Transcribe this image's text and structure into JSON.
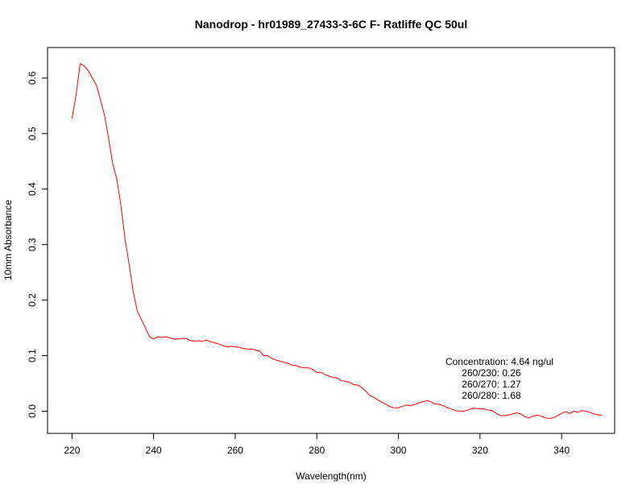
{
  "chart_data": {
    "type": "line",
    "title": "Nanodrop - hr01989_27433-3-6C  F- Ratliffe QC 50ul",
    "xlabel": "Wavelength(nm)",
    "ylabel": "10mm Absorbance",
    "xlim": [
      214,
      353
    ],
    "ylim": [
      -0.04,
      0.655
    ],
    "x_ticks": [
      220,
      240,
      260,
      280,
      300,
      320,
      340
    ],
    "y_ticks": [
      0.0,
      0.1,
      0.2,
      0.3,
      0.4,
      0.5,
      0.6
    ],
    "x_tick_labels": [
      "220",
      "240",
      "260",
      "280",
      "300",
      "320",
      "340"
    ],
    "y_tick_labels": [
      "0.0",
      "0.1",
      "0.2",
      "0.3",
      "0.4",
      "0.5",
      "0.6"
    ],
    "grid": false,
    "series": [
      {
        "color": "#ff0000",
        "x": [
          220,
          221,
          222,
          223,
          224,
          225,
          226,
          227,
          228,
          229,
          230,
          231,
          232,
          233,
          234,
          235,
          236,
          237,
          238,
          239,
          240,
          241,
          242,
          243,
          244,
          245,
          246,
          247,
          248,
          249,
          250,
          251,
          252,
          253,
          254,
          255,
          256,
          257,
          258,
          259,
          260,
          261,
          262,
          263,
          264,
          265,
          266,
          267,
          268,
          269,
          270,
          271,
          272,
          273,
          274,
          275,
          276,
          277,
          278,
          279,
          280,
          281,
          282,
          283,
          284,
          285,
          286,
          287,
          288,
          289,
          290,
          291,
          292,
          293,
          294,
          295,
          296,
          297,
          298,
          299,
          300,
          301,
          302,
          303,
          304,
          305,
          306,
          307,
          308,
          309,
          310,
          311,
          312,
          313,
          314,
          315,
          316,
          317,
          318,
          319,
          320,
          321,
          322,
          323,
          324,
          325,
          326,
          327,
          328,
          329,
          330,
          331,
          332,
          333,
          334,
          335,
          336,
          337,
          338,
          339,
          340,
          341,
          342,
          343,
          344,
          345,
          346,
          347,
          348,
          349,
          350
        ],
        "values": [
          0.527,
          0.57,
          0.626,
          0.622,
          0.613,
          0.6,
          0.587,
          0.56,
          0.532,
          0.49,
          0.445,
          0.417,
          0.37,
          0.31,
          0.265,
          0.215,
          0.18,
          0.165,
          0.15,
          0.134,
          0.13,
          0.134,
          0.133,
          0.134,
          0.132,
          0.13,
          0.13,
          0.131,
          0.131,
          0.127,
          0.126,
          0.127,
          0.126,
          0.128,
          0.125,
          0.123,
          0.121,
          0.118,
          0.116,
          0.117,
          0.116,
          0.115,
          0.113,
          0.112,
          0.112,
          0.11,
          0.108,
          0.1,
          0.1,
          0.095,
          0.092,
          0.09,
          0.088,
          0.086,
          0.083,
          0.082,
          0.079,
          0.078,
          0.078,
          0.075,
          0.07,
          0.07,
          0.066,
          0.063,
          0.061,
          0.06,
          0.055,
          0.054,
          0.052,
          0.048,
          0.047,
          0.043,
          0.036,
          0.028,
          0.025,
          0.02,
          0.016,
          0.012,
          0.008,
          0.006,
          0.006,
          0.009,
          0.011,
          0.01,
          0.012,
          0.015,
          0.017,
          0.019,
          0.017,
          0.013,
          0.012,
          0.01,
          0.006,
          0.004,
          0.001,
          0.0,
          0.0,
          0.002,
          0.005,
          0.005,
          0.004,
          0.004,
          0.002,
          0.001,
          -0.004,
          -0.008,
          -0.008,
          -0.007,
          -0.005,
          -0.003,
          -0.005,
          -0.01,
          -0.012,
          -0.009,
          -0.007,
          -0.009,
          -0.012,
          -0.013,
          -0.012,
          -0.008,
          -0.004,
          -0.001,
          -0.004,
          0.0,
          -0.002,
          0.001,
          0.0,
          -0.002,
          -0.005,
          -0.007,
          -0.007
        ]
      }
    ],
    "annotations": [
      "Concentration: 4.64 ng/ul",
      "260/230: 0.26",
      "260/270: 1.27",
      "260/280: 1.68"
    ]
  }
}
